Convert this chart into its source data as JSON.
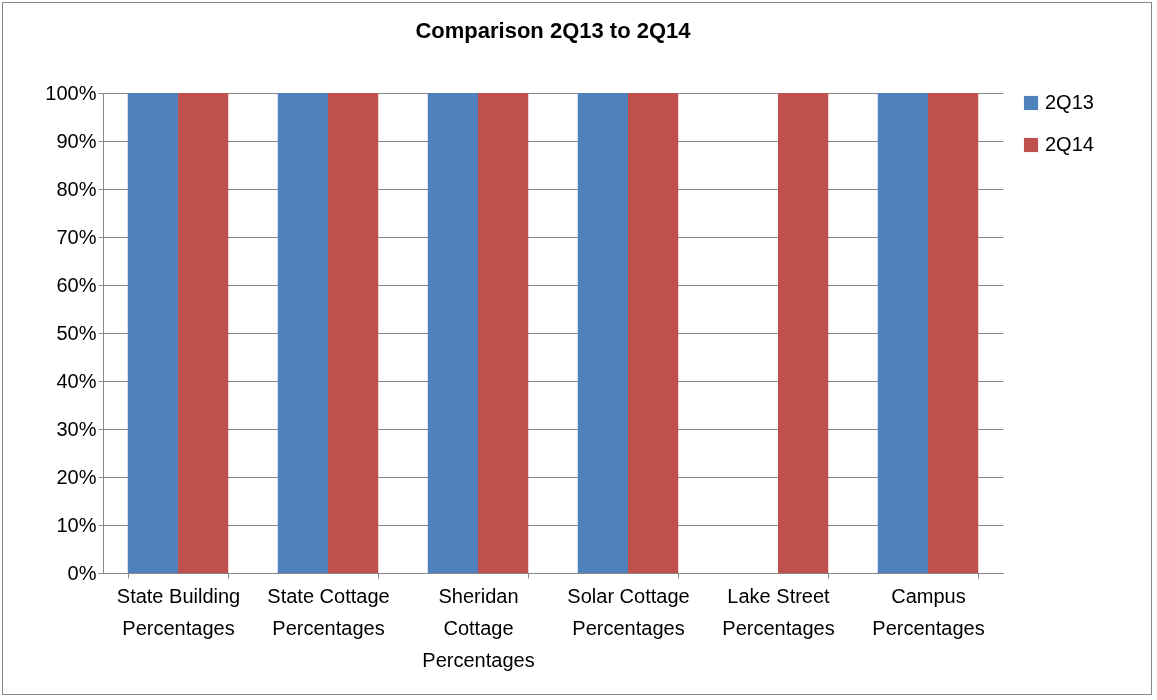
{
  "chart_data": {
    "type": "bar",
    "title": "Comparison 2Q13 to 2Q14",
    "categories": [
      "State Building Percentages",
      "State Cottage Percentages",
      "Sheridan Cottage Percentages",
      "Solar Cottage Percentages",
      "Lake Street Percentages",
      "Campus Percentages"
    ],
    "series": [
      {
        "name": "2Q13",
        "color": "#4f81bd",
        "values": [
          100,
          100,
          100,
          100,
          0,
          100
        ]
      },
      {
        "name": "2Q14",
        "color": "#c0504d",
        "values": [
          100,
          100,
          100,
          100,
          100,
          100
        ]
      }
    ],
    "ylim": [
      0,
      100
    ],
    "yticks": [
      {
        "value": 0,
        "label": "0%"
      },
      {
        "value": 10,
        "label": "10%"
      },
      {
        "value": 20,
        "label": "20%"
      },
      {
        "value": 30,
        "label": "30%"
      },
      {
        "value": 40,
        "label": "40%"
      },
      {
        "value": 50,
        "label": "50%"
      },
      {
        "value": 60,
        "label": "60%"
      },
      {
        "value": 70,
        "label": "70%"
      },
      {
        "value": 80,
        "label": "80%"
      },
      {
        "value": 90,
        "label": "90%"
      },
      {
        "value": 100,
        "label": "100%"
      }
    ],
    "grid": "y",
    "legend": "right"
  }
}
